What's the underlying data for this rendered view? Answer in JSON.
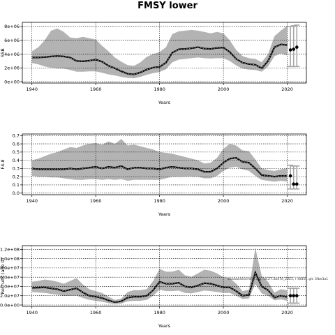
{
  "title": "FMSY lower",
  "watermark": "stockassessment.org, sd.27.3a47d_2021, r 4443 , git: 5fbe3a1",
  "chart_data": [
    {
      "type": "area",
      "ylabel": "SSB",
      "xlabel": "Years",
      "xlim": [
        1937,
        2026
      ],
      "ylim": [
        -200000,
        8600000
      ],
      "xticks": [
        1940,
        1960,
        1980,
        2000,
        2020
      ],
      "yticks": [
        0,
        2000000,
        4000000,
        6000000,
        8000000
      ],
      "ytick_labels": [
        "0e+00",
        "2e+06",
        "4e+06",
        "6e+06",
        "8e+06"
      ],
      "grid": true,
      "x": [
        1940,
        1942,
        1944,
        1946,
        1948,
        1950,
        1952,
        1954,
        1956,
        1958,
        1960,
        1962,
        1964,
        1966,
        1968,
        1970,
        1972,
        1974,
        1976,
        1978,
        1980,
        1982,
        1984,
        1986,
        1988,
        1990,
        1992,
        1994,
        1996,
        1998,
        2000,
        2002,
        2004,
        2006,
        2008,
        2010,
        2012,
        2014,
        2016,
        2018,
        2020
      ],
      "median": [
        3500000,
        3500000,
        3550000,
        3650000,
        3700000,
        3650000,
        3500000,
        3000000,
        2950000,
        3050000,
        3200000,
        2900000,
        2300000,
        1950000,
        1500000,
        1150000,
        1050000,
        1350000,
        1750000,
        2050000,
        2150000,
        2750000,
        4200000,
        4700000,
        4750000,
        4850000,
        5000000,
        4800000,
        4750000,
        4900000,
        4950000,
        4300000,
        3300000,
        2750000,
        2550000,
        2450000,
        1950000,
        3000000,
        5000000,
        5400000,
        5300000
      ],
      "lower": [
        2700000,
        2500000,
        2200000,
        2000000,
        1900000,
        1900000,
        1700000,
        1450000,
        1450000,
        1500000,
        1500000,
        1300000,
        1050000,
        900000,
        700000,
        550000,
        500000,
        700000,
        1000000,
        1250000,
        1400000,
        1800000,
        2800000,
        3200000,
        3300000,
        3400000,
        3500000,
        3400000,
        3350000,
        3400000,
        3400000,
        3000000,
        2350000,
        1900000,
        1750000,
        1700000,
        1450000,
        2200000,
        3700000,
        4100000,
        3800000
      ],
      "upper": [
        4400000,
        5000000,
        6000000,
        7400000,
        7700000,
        7200000,
        6400000,
        6300000,
        6500000,
        6300000,
        6100000,
        5200000,
        4400000,
        3500000,
        2900000,
        2400000,
        2300000,
        2800000,
        3600000,
        4000000,
        4300000,
        5000000,
        6900000,
        7300000,
        7400000,
        7500000,
        7400000,
        7200000,
        7000000,
        7200000,
        7000000,
        6000000,
        4600000,
        3700000,
        3400000,
        3300000,
        2800000,
        4000000,
        6600000,
        7400000,
        8100000
      ],
      "forecast_x": [
        2021,
        2022,
        2023
      ],
      "forecast_values": [
        4600000,
        4700000,
        5000000
      ],
      "forecast_lower": [
        2200000,
        2200000,
        2200000
      ],
      "forecast_upper": [
        8000000,
        8100000,
        8200000
      ]
    },
    {
      "type": "area",
      "ylabel": "F4-8",
      "xlabel": "Years",
      "xlim": [
        1937,
        2026
      ],
      "ylim": [
        -0.02,
        0.72
      ],
      "xticks": [
        1940,
        1960,
        1980,
        2000,
        2020
      ],
      "yticks": [
        0,
        0.1,
        0.2,
        0.3,
        0.4,
        0.5,
        0.6,
        0.7
      ],
      "ytick_labels": [
        "0.0",
        "0.1",
        "0.2",
        "0.3",
        "0.4",
        "0.5",
        "0.6",
        "0.7"
      ],
      "grid": true,
      "x": [
        1940,
        1942,
        1944,
        1946,
        1948,
        1950,
        1952,
        1954,
        1956,
        1958,
        1960,
        1962,
        1964,
        1966,
        1968,
        1970,
        1972,
        1974,
        1976,
        1978,
        1980,
        1982,
        1984,
        1986,
        1988,
        1990,
        1992,
        1994,
        1996,
        1998,
        2000,
        2002,
        2004,
        2006,
        2008,
        2010,
        2012,
        2014,
        2016,
        2018,
        2020
      ],
      "median": [
        0.3,
        0.29,
        0.29,
        0.29,
        0.29,
        0.29,
        0.3,
        0.29,
        0.3,
        0.31,
        0.32,
        0.3,
        0.32,
        0.31,
        0.33,
        0.29,
        0.31,
        0.31,
        0.3,
        0.3,
        0.29,
        0.31,
        0.32,
        0.31,
        0.3,
        0.3,
        0.29,
        0.26,
        0.26,
        0.3,
        0.37,
        0.42,
        0.43,
        0.38,
        0.37,
        0.3,
        0.22,
        0.21,
        0.2,
        0.21,
        0.21
      ],
      "lower": [
        0.21,
        0.2,
        0.2,
        0.19,
        0.19,
        0.18,
        0.17,
        0.16,
        0.16,
        0.17,
        0.17,
        0.16,
        0.17,
        0.16,
        0.17,
        0.15,
        0.16,
        0.16,
        0.16,
        0.16,
        0.16,
        0.18,
        0.2,
        0.2,
        0.2,
        0.2,
        0.2,
        0.18,
        0.18,
        0.21,
        0.27,
        0.31,
        0.32,
        0.29,
        0.27,
        0.21,
        0.16,
        0.15,
        0.14,
        0.15,
        0.14
      ],
      "upper": [
        0.4,
        0.42,
        0.45,
        0.48,
        0.5,
        0.53,
        0.56,
        0.55,
        0.58,
        0.6,
        0.61,
        0.59,
        0.63,
        0.6,
        0.66,
        0.58,
        0.59,
        0.57,
        0.55,
        0.53,
        0.5,
        0.49,
        0.48,
        0.46,
        0.44,
        0.42,
        0.4,
        0.36,
        0.37,
        0.43,
        0.54,
        0.6,
        0.58,
        0.52,
        0.51,
        0.41,
        0.3,
        0.28,
        0.27,
        0.29,
        0.3
      ],
      "forecast_x": [
        2021,
        2022,
        2023
      ],
      "forecast_values": [
        0.21,
        0.11,
        0.11
      ],
      "forecast_lower": [
        0.05,
        0.05,
        0.05
      ],
      "forecast_upper": [
        0.34,
        0.33,
        0.33
      ]
    },
    {
      "type": "area",
      "ylabel": "Recruits (age 0)",
      "xlabel": "Years",
      "xlim": [
        1937,
        2026
      ],
      "ylim": [
        -3000000,
        128000000
      ],
      "xticks": [
        1940,
        1960,
        1980,
        2000,
        2020
      ],
      "yticks": [
        0,
        20000000,
        40000000,
        60000000,
        80000000,
        100000000,
        120000000
      ],
      "ytick_labels": [
        "0.0e+00",
        "2.0e+07",
        "4.0e+07",
        "6.0e+07",
        "8.0e+07",
        "1.0e+08",
        "1.2e+08"
      ],
      "grid": true,
      "x": [
        1940,
        1942,
        1944,
        1946,
        1948,
        1950,
        1952,
        1954,
        1956,
        1958,
        1960,
        1962,
        1964,
        1966,
        1968,
        1970,
        1972,
        1974,
        1976,
        1978,
        1980,
        1982,
        1984,
        1986,
        1988,
        1990,
        1992,
        1994,
        1996,
        1998,
        2000,
        2002,
        2004,
        2006,
        2008,
        2010,
        2012,
        2014,
        2016,
        2018,
        2020
      ],
      "median": [
        37000000,
        37500000,
        38000000,
        36000000,
        34000000,
        30000000,
        33000000,
        36000000,
        27000000,
        20000000,
        18000000,
        15000000,
        10000000,
        6000000,
        8000000,
        16000000,
        18000000,
        18000000,
        20000000,
        32000000,
        50000000,
        46000000,
        46000000,
        48000000,
        40000000,
        38000000,
        42000000,
        47000000,
        46000000,
        42000000,
        38000000,
        38000000,
        30000000,
        20000000,
        22000000,
        70000000,
        40000000,
        32000000,
        16000000,
        20000000,
        17000000
      ],
      "lower": [
        28000000,
        27000000,
        26000000,
        24000000,
        22000000,
        20000000,
        20000000,
        20000000,
        15000000,
        11000000,
        9000000,
        7000000,
        4000000,
        2000000,
        3000000,
        8000000,
        9000000,
        9000000,
        11000000,
        20000000,
        33000000,
        30000000,
        30000000,
        31000000,
        26000000,
        25000000,
        28000000,
        31000000,
        30000000,
        28000000,
        26000000,
        26000000,
        20000000,
        13000000,
        14000000,
        45000000,
        25000000,
        20000000,
        10000000,
        12000000,
        9000000
      ],
      "upper": [
        50000000,
        52000000,
        55000000,
        53000000,
        50000000,
        46000000,
        52000000,
        58000000,
        44000000,
        34000000,
        30000000,
        26000000,
        18000000,
        11000000,
        14000000,
        28000000,
        32000000,
        32000000,
        34000000,
        52000000,
        78000000,
        72000000,
        72000000,
        76000000,
        64000000,
        61000000,
        68000000,
        76000000,
        74000000,
        68000000,
        60000000,
        58000000,
        46000000,
        30000000,
        33000000,
        123000000,
        63000000,
        50000000,
        27000000,
        34000000,
        32000000
      ],
      "forecast_x": [
        2021,
        2022,
        2023
      ],
      "forecast_values": [
        20000000,
        20000000,
        20000000
      ],
      "forecast_lower": [
        4000000,
        4000000,
        4000000
      ],
      "forecast_upper": [
        36000000,
        36000000,
        36000000
      ]
    }
  ]
}
